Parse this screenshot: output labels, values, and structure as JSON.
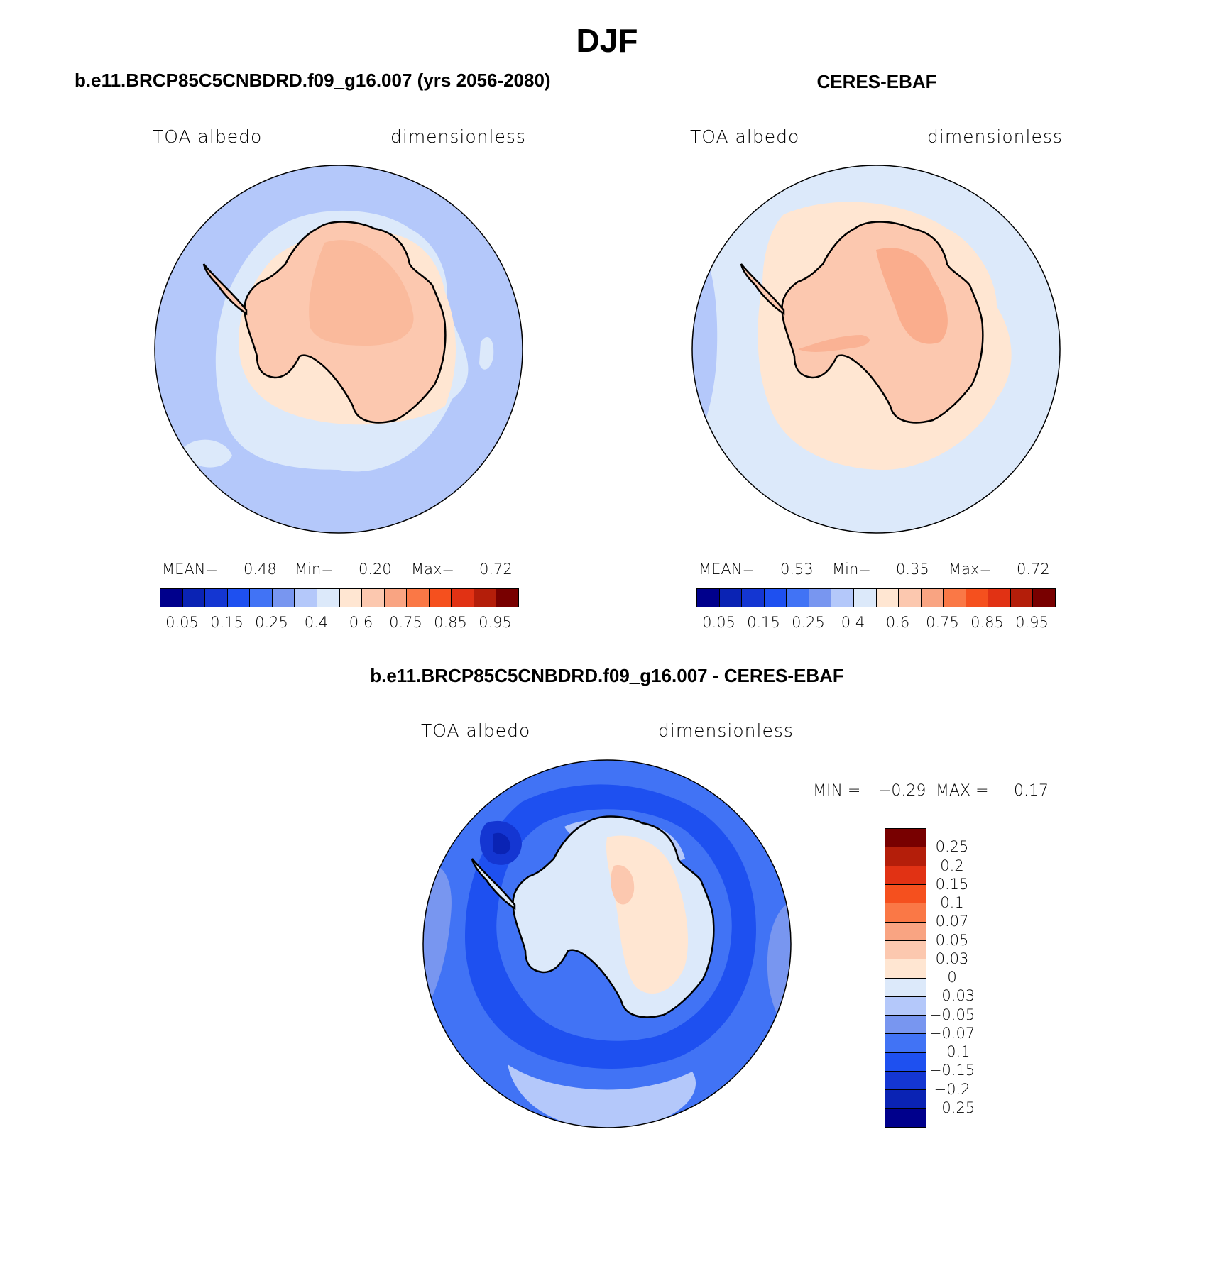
{
  "title": "DJF",
  "panels": {
    "model": {
      "title": "b.e11.BRCP85C5CNBDRD.f09_g16.007 (yrs 2056-2080)",
      "left_label": "TOA albedo",
      "right_label": "dimensionless",
      "mean_label": "MEAN=",
      "mean": "0.48",
      "min_label": "Min=",
      "min": "0.20",
      "max_label": "Max=",
      "max": "0.72"
    },
    "obs": {
      "title": "CERES-EBAF",
      "left_label": "TOA albedo",
      "right_label": "dimensionless",
      "mean_label": "MEAN=",
      "mean": "0.53",
      "min_label": "Min=",
      "min": "0.35",
      "max_label": "Max=",
      "max": "0.72"
    },
    "diff": {
      "title": "b.e11.BRCP85C5CNBDRD.f09_g16.007 - CERES-EBAF",
      "left_label": "TOA albedo",
      "right_label": "dimensionless",
      "min_label": "MIN =",
      "min": "−0.29",
      "max_label": "MAX =",
      "max": "0.17"
    }
  },
  "colorbar_abs": {
    "colors": [
      "#00008c",
      "#0a23b4",
      "#1436d2",
      "#1e50f0",
      "#4173f5",
      "#7896f0",
      "#b4c8fa",
      "#dce9fa",
      "#ffe6d2",
      "#fcc8af",
      "#f9a482",
      "#fa7846",
      "#f5501e",
      "#e13214",
      "#b41e0a",
      "#780000"
    ],
    "tick_labels": [
      "0.05",
      "0.15",
      "0.25",
      "0.4",
      "0.6",
      "0.75",
      "0.85",
      "0.95"
    ]
  },
  "colorbar_diff": {
    "colors_top_to_bottom": [
      "#780000",
      "#b41e0a",
      "#e13214",
      "#f5501e",
      "#fa7846",
      "#f9a482",
      "#fcc8af",
      "#ffe6d2",
      "#dce9fa",
      "#b4c8fa",
      "#7896f0",
      "#4173f5",
      "#1e50f0",
      "#1436d2",
      "#0a23b4",
      "#00008c"
    ],
    "tick_labels": [
      "0.25",
      "0.2",
      "0.15",
      "0.1",
      "0.07",
      "0.05",
      "0.03",
      "0",
      "−0.03",
      "−0.05",
      "−0.07",
      "−0.1",
      "−0.15",
      "−0.2",
      "−0.25"
    ]
  },
  "map_fills": {
    "model": {
      "ocean": "#b4c8fa",
      "sea_ice": "#dce9fa",
      "margin": "#ffe6d2",
      "continent": "#fcc8af",
      "interior": "#f9b494"
    },
    "obs": {
      "ocean": "#dce9fa",
      "ring": "#ffe6d2",
      "ocean_patch": "#b4c8fa",
      "continent": "#fcc8af",
      "interior": "#f9a482"
    },
    "diff": {
      "ocean": "#4173f5",
      "band": "#1e50f0",
      "dark": "#1436d2",
      "light": "#7896f0",
      "pale": "#b4c8fa",
      "continent": "#dce9fa",
      "warm": "#ffe6d2",
      "warmer": "#fcc8af"
    }
  }
}
